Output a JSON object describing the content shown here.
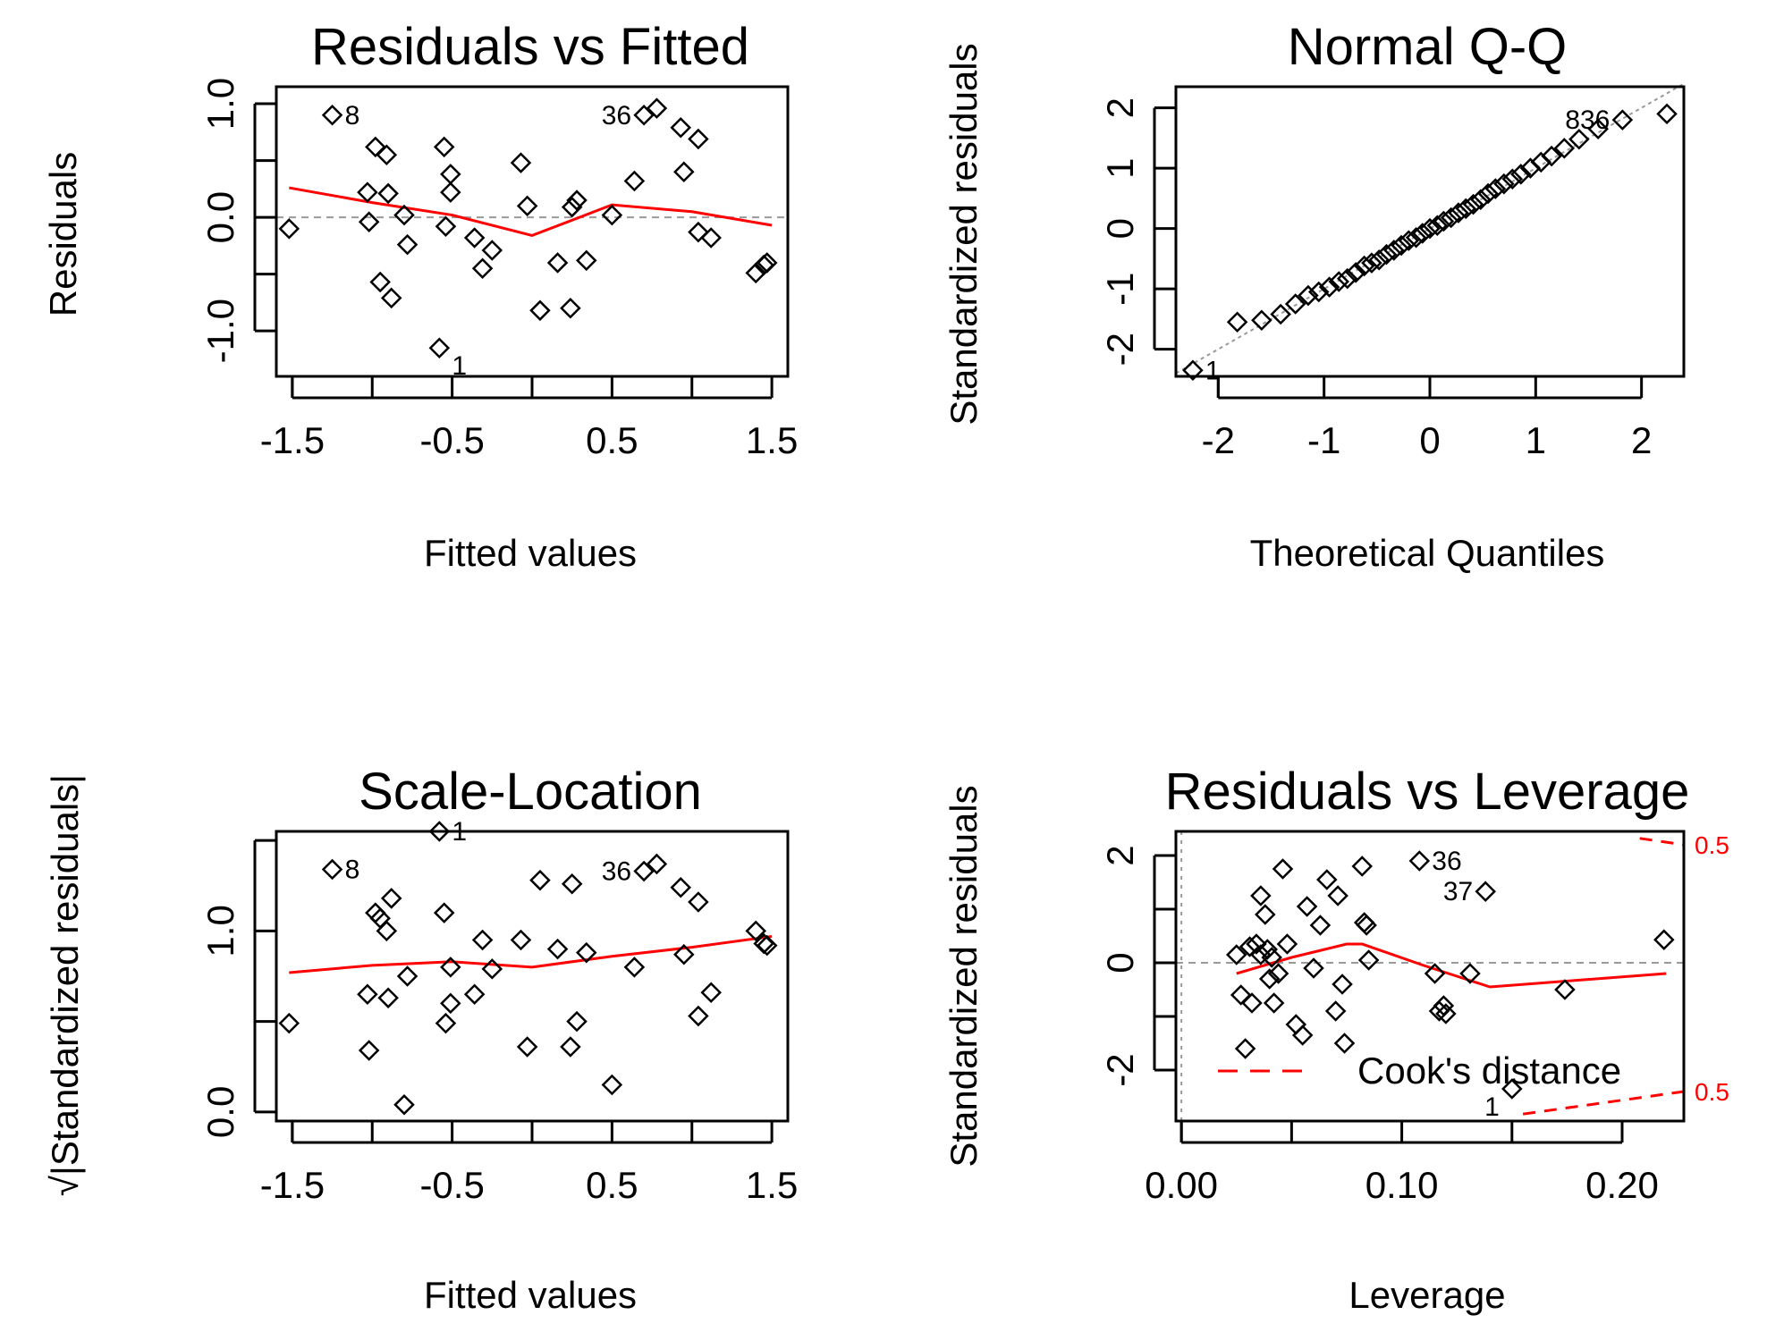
{
  "colors": {
    "smooth": "#ff0000",
    "reference": "#999999",
    "points": "#000000",
    "background": "#ffffff"
  },
  "chart_data": [
    {
      "id": "rvf",
      "type": "scatter",
      "title": "Residuals vs Fitted",
      "xlabel": "Fitted values",
      "ylabel": "Residuals",
      "xlim": [
        -1.6,
        1.6
      ],
      "ylim": [
        -1.4,
        1.15
      ],
      "xticks": [
        -1.5,
        -1.0,
        -0.5,
        0.0,
        0.5,
        1.0,
        1.5
      ],
      "xtick_labels": [
        "-1.5",
        "",
        "-0.5",
        "",
        "0.5",
        "",
        "1.5"
      ],
      "yticks": [
        -1.0,
        -0.5,
        0.0,
        0.5,
        1.0
      ],
      "ytick_labels": [
        "-1.0",
        "",
        "0.0",
        "",
        "1.0"
      ],
      "reference_line": {
        "y": 0
      },
      "points": [
        [
          -1.52,
          -0.1
        ],
        [
          -1.25,
          0.9
        ],
        [
          -1.03,
          0.22
        ],
        [
          -1.02,
          -0.04
        ],
        [
          -0.98,
          0.62
        ],
        [
          -0.95,
          -0.57
        ],
        [
          -0.91,
          0.55
        ],
        [
          -0.9,
          0.21
        ],
        [
          -0.88,
          -0.71
        ],
        [
          -0.8,
          0.02
        ],
        [
          -0.78,
          -0.24
        ],
        [
          -0.58,
          -1.15
        ],
        [
          -0.55,
          0.62
        ],
        [
          -0.54,
          -0.08
        ],
        [
          -0.51,
          0.38
        ],
        [
          -0.51,
          0.22
        ],
        [
          -0.36,
          -0.18
        ],
        [
          -0.31,
          -0.45
        ],
        [
          -0.25,
          -0.29
        ],
        [
          -0.07,
          0.48
        ],
        [
          -0.03,
          0.1
        ],
        [
          0.05,
          -0.82
        ],
        [
          0.16,
          -0.4
        ],
        [
          0.24,
          -0.8
        ],
        [
          0.25,
          0.09
        ],
        [
          0.28,
          0.15
        ],
        [
          0.34,
          -0.38
        ],
        [
          0.5,
          0.02
        ],
        [
          0.64,
          0.32
        ],
        [
          0.7,
          0.9
        ],
        [
          0.78,
          0.96
        ],
        [
          0.93,
          0.79
        ],
        [
          0.95,
          0.4
        ],
        [
          1.04,
          0.69
        ],
        [
          1.04,
          -0.13
        ],
        [
          1.12,
          -0.18
        ],
        [
          1.4,
          -0.49
        ],
        [
          1.45,
          -0.42
        ],
        [
          1.47,
          -0.4
        ]
      ],
      "smooth": [
        [
          -1.52,
          0.26
        ],
        [
          -1.0,
          0.13
        ],
        [
          -0.5,
          0.02
        ],
        [
          0.0,
          -0.16
        ],
        [
          0.5,
          0.11
        ],
        [
          1.0,
          0.05
        ],
        [
          1.5,
          -0.07
        ]
      ],
      "point_labels": [
        {
          "text": "8",
          "x": -1.25,
          "y": 0.9,
          "side": "right"
        },
        {
          "text": "36",
          "x": 0.7,
          "y": 0.9,
          "side": "left"
        },
        {
          "text": "1",
          "x": -0.58,
          "y": -1.15,
          "side": "below-right"
        }
      ]
    },
    {
      "id": "qq",
      "type": "scatter",
      "title": "Normal Q-Q",
      "xlabel": "Theoretical Quantiles",
      "ylabel": "Standardized residuals",
      "xlim": [
        -2.4,
        2.4
      ],
      "ylim": [
        -2.45,
        2.35
      ],
      "xticks": [
        -2,
        -1,
        0,
        1,
        2
      ],
      "xtick_labels": [
        "-2",
        "-1",
        "0",
        "1",
        "2"
      ],
      "yticks": [
        -2,
        -1,
        0,
        1,
        2
      ],
      "ytick_labels": [
        "-2",
        "-1",
        "0",
        "1",
        "2"
      ],
      "reference_line": {
        "from": [
          -2.4,
          -2.4
        ],
        "to": [
          2.4,
          2.4
        ]
      },
      "points": [
        [
          -2.24,
          -2.35
        ],
        [
          -1.82,
          -1.55
        ],
        [
          -1.59,
          -1.52
        ],
        [
          -1.41,
          -1.42
        ],
        [
          -1.27,
          -1.25
        ],
        [
          -1.15,
          -1.11
        ],
        [
          -1.05,
          -1.05
        ],
        [
          -0.95,
          -0.97
        ],
        [
          -0.86,
          -0.88
        ],
        [
          -0.78,
          -0.83
        ],
        [
          -0.7,
          -0.73
        ],
        [
          -0.62,
          -0.62
        ],
        [
          -0.55,
          -0.57
        ],
        [
          -0.48,
          -0.52
        ],
        [
          -0.41,
          -0.43
        ],
        [
          -0.34,
          -0.36
        ],
        [
          -0.27,
          -0.28
        ],
        [
          -0.2,
          -0.2
        ],
        [
          -0.13,
          -0.15
        ],
        [
          -0.07,
          -0.08
        ],
        [
          0.0,
          0.0
        ],
        [
          0.07,
          0.05
        ],
        [
          0.13,
          0.12
        ],
        [
          0.2,
          0.18
        ],
        [
          0.27,
          0.26
        ],
        [
          0.34,
          0.33
        ],
        [
          0.41,
          0.4
        ],
        [
          0.48,
          0.48
        ],
        [
          0.55,
          0.58
        ],
        [
          0.62,
          0.66
        ],
        [
          0.7,
          0.74
        ],
        [
          0.78,
          0.82
        ],
        [
          0.86,
          0.9
        ],
        [
          0.95,
          1.0
        ],
        [
          1.05,
          1.1
        ],
        [
          1.15,
          1.2
        ],
        [
          1.27,
          1.33
        ],
        [
          1.41,
          1.48
        ],
        [
          1.59,
          1.65
        ],
        [
          1.82,
          1.8
        ],
        [
          2.24,
          1.9
        ]
      ],
      "point_labels": [
        {
          "text": "1",
          "x": -2.24,
          "y": -2.35,
          "side": "right"
        },
        {
          "text": "836",
          "x": 1.82,
          "y": 1.8,
          "side": "left"
        }
      ]
    },
    {
      "id": "sl",
      "type": "scatter",
      "title": "Scale-Location",
      "xlabel": "Fitted values",
      "ylabel": "√|Standardized residuals|",
      "xlim": [
        -1.6,
        1.6
      ],
      "ylim": [
        -0.05,
        1.55
      ],
      "xticks": [
        -1.5,
        -1.0,
        -0.5,
        0.0,
        0.5,
        1.0,
        1.5
      ],
      "xtick_labels": [
        "-1.5",
        "",
        "-0.5",
        "",
        "0.5",
        "",
        "1.5"
      ],
      "yticks": [
        0.0,
        0.5,
        1.0,
        1.5
      ],
      "ytick_labels": [
        "0.0",
        "",
        "1.0",
        ""
      ],
      "points": [
        [
          -1.52,
          0.49
        ],
        [
          -1.25,
          1.34
        ],
        [
          -1.03,
          0.65
        ],
        [
          -1.02,
          0.34
        ],
        [
          -0.98,
          1.1
        ],
        [
          -0.95,
          1.07
        ],
        [
          -0.91,
          1.0
        ],
        [
          -0.9,
          0.63
        ],
        [
          -0.88,
          1.18
        ],
        [
          -0.8,
          0.04
        ],
        [
          -0.78,
          0.75
        ],
        [
          -0.58,
          1.55
        ],
        [
          -0.55,
          1.1
        ],
        [
          -0.54,
          0.49
        ],
        [
          -0.51,
          0.6
        ],
        [
          -0.51,
          0.8
        ],
        [
          -0.36,
          0.65
        ],
        [
          -0.31,
          0.95
        ],
        [
          -0.25,
          0.79
        ],
        [
          -0.07,
          0.95
        ],
        [
          -0.03,
          0.36
        ],
        [
          0.05,
          1.28
        ],
        [
          0.16,
          0.9
        ],
        [
          0.24,
          0.36
        ],
        [
          0.25,
          1.26
        ],
        [
          0.28,
          0.5
        ],
        [
          0.34,
          0.88
        ],
        [
          0.5,
          0.15
        ],
        [
          0.64,
          0.8
        ],
        [
          0.7,
          1.33
        ],
        [
          0.78,
          1.37
        ],
        [
          0.93,
          1.24
        ],
        [
          0.95,
          0.87
        ],
        [
          1.04,
          0.53
        ],
        [
          1.04,
          1.16
        ],
        [
          1.12,
          0.66
        ],
        [
          1.4,
          1.0
        ],
        [
          1.45,
          0.93
        ],
        [
          1.47,
          0.92
        ]
      ],
      "smooth": [
        [
          -1.52,
          0.77
        ],
        [
          -1.0,
          0.81
        ],
        [
          -0.5,
          0.83
        ],
        [
          0.0,
          0.8
        ],
        [
          0.5,
          0.86
        ],
        [
          1.0,
          0.91
        ],
        [
          1.5,
          0.97
        ]
      ],
      "point_labels": [
        {
          "text": "8",
          "x": -1.25,
          "y": 1.34,
          "side": "right"
        },
        {
          "text": "36",
          "x": 0.7,
          "y": 1.33,
          "side": "left"
        },
        {
          "text": "1",
          "x": -0.58,
          "y": 1.55,
          "side": "right"
        }
      ]
    },
    {
      "id": "rvl",
      "type": "scatter",
      "title": "Residuals vs Leverage",
      "xlabel": "Leverage",
      "ylabel": "Standardized residuals",
      "xlim": [
        -0.0025,
        0.228
      ],
      "ylim": [
        -2.95,
        2.45
      ],
      "xticks": [
        0.0,
        0.05,
        0.1,
        0.15,
        0.2
      ],
      "xtick_labels": [
        "0.00",
        "",
        "0.10",
        "",
        "0.20"
      ],
      "yticks": [
        -2,
        -1,
        0,
        1,
        2
      ],
      "ytick_labels": [
        "-2",
        "",
        "0",
        "",
        "2"
      ],
      "reference_lines": {
        "x": 0,
        "y": 0
      },
      "points": [
        [
          0.025,
          0.15
        ],
        [
          0.027,
          -0.6
        ],
        [
          0.029,
          -1.6
        ],
        [
          0.031,
          0.3
        ],
        [
          0.032,
          -0.75
        ],
        [
          0.034,
          0.35
        ],
        [
          0.036,
          0.15
        ],
        [
          0.036,
          1.25
        ],
        [
          0.038,
          0.9
        ],
        [
          0.039,
          0.25
        ],
        [
          0.04,
          -0.3
        ],
        [
          0.041,
          0.1
        ],
        [
          0.042,
          -0.75
        ],
        [
          0.044,
          -0.2
        ],
        [
          0.046,
          1.75
        ],
        [
          0.048,
          0.35
        ],
        [
          0.052,
          -1.15
        ],
        [
          0.055,
          -1.35
        ],
        [
          0.057,
          1.05
        ],
        [
          0.06,
          -0.1
        ],
        [
          0.063,
          0.7
        ],
        [
          0.066,
          1.55
        ],
        [
          0.07,
          -0.9
        ],
        [
          0.071,
          1.25
        ],
        [
          0.073,
          -0.4
        ],
        [
          0.074,
          -1.5
        ],
        [
          0.082,
          1.8
        ],
        [
          0.083,
          0.75
        ],
        [
          0.084,
          0.7
        ],
        [
          0.085,
          0.05
        ],
        [
          0.108,
          1.9
        ],
        [
          0.115,
          -0.2
        ],
        [
          0.117,
          -0.9
        ],
        [
          0.119,
          -0.8
        ],
        [
          0.12,
          -0.95
        ],
        [
          0.131,
          -0.2
        ],
        [
          0.138,
          1.33
        ],
        [
          0.15,
          -2.35
        ],
        [
          0.174,
          -0.5
        ],
        [
          0.219,
          0.43
        ]
      ],
      "smooth": [
        [
          0.025,
          -0.2
        ],
        [
          0.05,
          0.1
        ],
        [
          0.075,
          0.35
        ],
        [
          0.082,
          0.35
        ],
        [
          0.11,
          -0.05
        ],
        [
          0.14,
          -0.45
        ],
        [
          0.22,
          -0.2
        ]
      ],
      "cooks_distance": {
        "level": "0.5",
        "upper": [
          [
            0.208,
            2.32
          ],
          [
            0.228,
            2.2
          ]
        ],
        "lower": [
          [
            0.155,
            -2.82
          ],
          [
            0.228,
            -2.4
          ]
        ]
      },
      "legend": {
        "label": "Cook's distance",
        "position": "bottom-left"
      },
      "point_labels": [
        {
          "text": "36",
          "x": 0.108,
          "y": 1.9,
          "side": "right"
        },
        {
          "text": "37",
          "x": 0.138,
          "y": 1.33,
          "side": "left"
        },
        {
          "text": "1",
          "x": 0.15,
          "y": -2.35,
          "side": "below-left"
        }
      ]
    }
  ]
}
